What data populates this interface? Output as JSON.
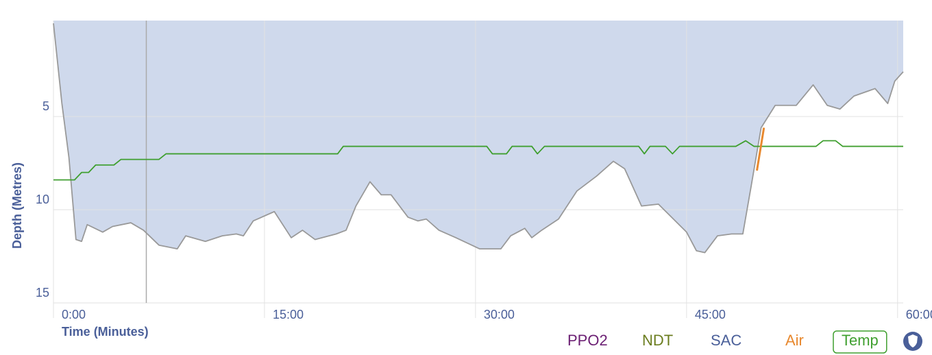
{
  "chart_data": {
    "type": "line",
    "y_label": "Depth (Metres)",
    "x_label": "Time (Minutes)",
    "xlim": [
      0,
      60.4
    ],
    "ylim": [
      -0.15,
      15
    ],
    "y_inverted": true,
    "xticks": [
      {
        "value": 0,
        "label": "0:00"
      },
      {
        "value": 15,
        "label": "15:00"
      },
      {
        "value": 30,
        "label": "30:00"
      },
      {
        "value": 45,
        "label": "45:00"
      },
      {
        "value": 60,
        "label": "60:00"
      }
    ],
    "yticks": [
      5,
      10,
      15
    ],
    "grid": true,
    "cursor_x": 6.6,
    "series": [
      {
        "color": "#999999",
        "fill": "#cfd9ec",
        "x": [
          0,
          0.6,
          1.1,
          1.6,
          2.0,
          2.4,
          3.5,
          4.2,
          5.5,
          6.4,
          7.5,
          8.8,
          9.4,
          10.8,
          12.0,
          13.0,
          13.5,
          14.2,
          15.7,
          16.9,
          17.7,
          18.6,
          20.1,
          20.8,
          21.5,
          22.5,
          23.3,
          24.0,
          25.2,
          25.9,
          26.5,
          27.4,
          28.6,
          30.3,
          31.8,
          32.5,
          33.5,
          34.0,
          34.7,
          35.9,
          37.2,
          38.6,
          39.8,
          40.6,
          41.8,
          43.0,
          45.0,
          45.7,
          46.3,
          47.2,
          48.2,
          49.0,
          49.6,
          50.3,
          51.3,
          52.8,
          54.0,
          55.0,
          55.9,
          56.9,
          58.4,
          59.3,
          59.8,
          60.4
        ],
        "values": [
          0,
          4.3,
          7.2,
          11.6,
          11.7,
          10.8,
          11.2,
          10.9,
          10.7,
          11.1,
          11.9,
          12.1,
          11.4,
          11.7,
          11.4,
          11.3,
          11.4,
          10.6,
          10.1,
          11.5,
          11.1,
          11.6,
          11.3,
          11.1,
          9.8,
          8.5,
          9.2,
          9.2,
          10.4,
          10.6,
          10.5,
          11.1,
          11.5,
          12.1,
          12.1,
          11.4,
          11.0,
          11.5,
          11.1,
          10.5,
          9.0,
          8.2,
          7.4,
          7.8,
          9.8,
          9.7,
          11.2,
          12.2,
          12.3,
          11.4,
          11.3,
          11.3,
          8.7,
          5.6,
          4.4,
          4.4,
          3.3,
          4.4,
          4.6,
          3.9,
          3.5,
          4.3,
          3.1,
          2.6
        ]
      },
      {
        "name": "Temp",
        "color": "#3f9f2f",
        "x": [
          0,
          1.5,
          2.0,
          2.5,
          3.0,
          4.3,
          4.8,
          7.5,
          8.0,
          20.2,
          20.6,
          30.8,
          31.2,
          32.2,
          32.6,
          34.0,
          34.4,
          34.9,
          41.6,
          42.0,
          42.4,
          43.5,
          44.0,
          44.5,
          48.5,
          49.2,
          49.8,
          54.2,
          54.7,
          55.6,
          56.1,
          60.4
        ],
        "values": [
          8.4,
          8.4,
          8.0,
          8.0,
          7.6,
          7.6,
          7.3,
          7.3,
          7.0,
          7.0,
          6.6,
          6.6,
          7.0,
          7.0,
          6.6,
          6.6,
          7.0,
          6.6,
          6.6,
          7.0,
          6.6,
          6.6,
          7.0,
          6.6,
          6.6,
          6.3,
          6.6,
          6.6,
          6.3,
          6.3,
          6.6,
          6.6
        ]
      },
      {
        "name": "Air",
        "color": "#e8892f",
        "x": [
          50.0,
          50.5
        ],
        "values": [
          7.9,
          5.6
        ]
      }
    ],
    "legend": [
      {
        "name": "PPO2",
        "color": "#6b1f73"
      },
      {
        "name": "NDT",
        "color": "#6b7d1f"
      },
      {
        "name": "SAC",
        "color": "#4a5f99"
      },
      {
        "name": "Air",
        "color": "#e8892f"
      },
      {
        "name": "Temp",
        "color": "#3f9f2f",
        "active": true
      }
    ]
  }
}
